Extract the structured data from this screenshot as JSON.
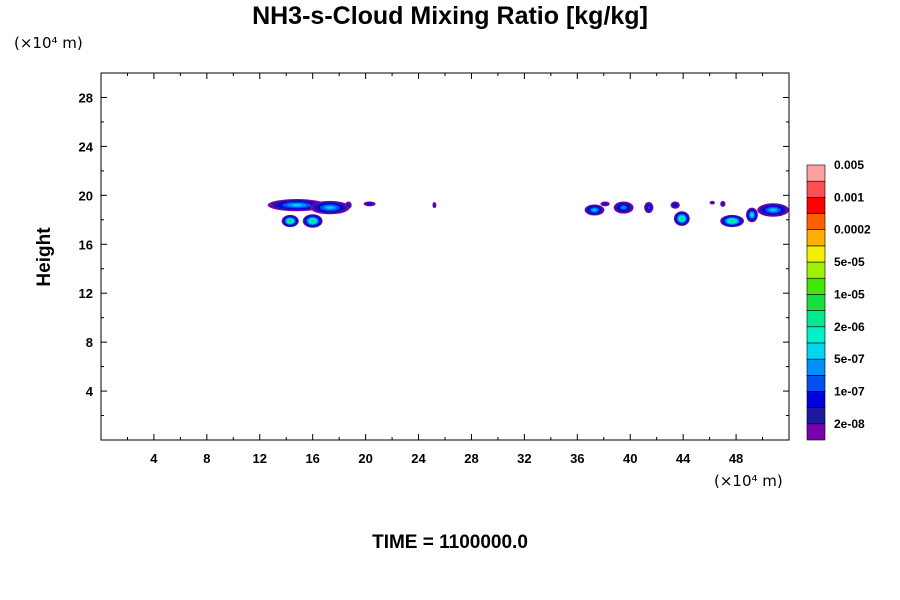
{
  "chart_data": {
    "type": "heatmap",
    "title": "NH3-s-Cloud Mixing Ratio [kg/kg]",
    "ylabel": "Height",
    "x_unit": "(×10⁴ m)",
    "y_unit": "(×10⁴ m)",
    "footer": "TIME = 1100000.0",
    "xlim": [
      0,
      52
    ],
    "ylim": [
      0,
      30
    ],
    "x_ticks": [
      4,
      8,
      12,
      16,
      20,
      24,
      28,
      32,
      36,
      40,
      44,
      48
    ],
    "y_ticks": [
      4,
      8,
      12,
      16,
      20,
      24,
      28
    ],
    "colorbar": {
      "colors": [
        "#7a00b0",
        "#1a1aa0",
        "#0000e0",
        "#0050f0",
        "#0090ff",
        "#00d8f0",
        "#00f0c8",
        "#00e890",
        "#10e040",
        "#40e800",
        "#a0f000",
        "#f0f000",
        "#ffb000",
        "#ff6000",
        "#ff0000",
        "#ff5050",
        "#ffa0a0"
      ],
      "labels": [
        "2e-08",
        "1e-07",
        "5e-07",
        "2e-06",
        "1e-05",
        "5e-05",
        "0.0002",
        "0.001",
        "0.005"
      ]
    },
    "regions": [
      {
        "cx": 14.8,
        "cy": 19.2,
        "rx": 2.2,
        "ry": 0.5,
        "max_level": 5
      },
      {
        "cx": 17.3,
        "cy": 19.0,
        "rx": 1.5,
        "ry": 0.55,
        "max_level": 5
      },
      {
        "cx": 14.3,
        "cy": 17.9,
        "rx": 0.65,
        "ry": 0.5,
        "max_level": 8
      },
      {
        "cx": 16.0,
        "cy": 17.9,
        "rx": 0.75,
        "ry": 0.55,
        "max_level": 8
      },
      {
        "cx": 18.7,
        "cy": 19.2,
        "rx": 0.25,
        "ry": 0.3,
        "max_level": 1
      },
      {
        "cx": 20.3,
        "cy": 19.3,
        "rx": 0.45,
        "ry": 0.2,
        "max_level": 2
      },
      {
        "cx": 25.2,
        "cy": 19.2,
        "rx": 0.15,
        "ry": 0.25,
        "max_level": 1
      },
      {
        "cx": 37.3,
        "cy": 18.8,
        "rx": 0.75,
        "ry": 0.45,
        "max_level": 5
      },
      {
        "cx": 38.1,
        "cy": 19.3,
        "rx": 0.35,
        "ry": 0.2,
        "max_level": 1
      },
      {
        "cx": 39.5,
        "cy": 19.0,
        "rx": 0.75,
        "ry": 0.5,
        "max_level": 4
      },
      {
        "cx": 41.4,
        "cy": 19.0,
        "rx": 0.35,
        "ry": 0.45,
        "max_level": 3
      },
      {
        "cx": 43.4,
        "cy": 19.2,
        "rx": 0.35,
        "ry": 0.3,
        "max_level": 2
      },
      {
        "cx": 43.9,
        "cy": 18.1,
        "rx": 0.6,
        "ry": 0.6,
        "max_level": 8
      },
      {
        "cx": 46.2,
        "cy": 19.4,
        "rx": 0.2,
        "ry": 0.15,
        "max_level": 1
      },
      {
        "cx": 47.0,
        "cy": 19.3,
        "rx": 0.2,
        "ry": 0.25,
        "max_level": 1
      },
      {
        "cx": 47.7,
        "cy": 17.9,
        "rx": 0.9,
        "ry": 0.5,
        "max_level": 8
      },
      {
        "cx": 49.2,
        "cy": 18.4,
        "rx": 0.45,
        "ry": 0.6,
        "max_level": 6
      },
      {
        "cx": 50.8,
        "cy": 18.8,
        "rx": 1.2,
        "ry": 0.55,
        "max_level": 5
      }
    ]
  }
}
